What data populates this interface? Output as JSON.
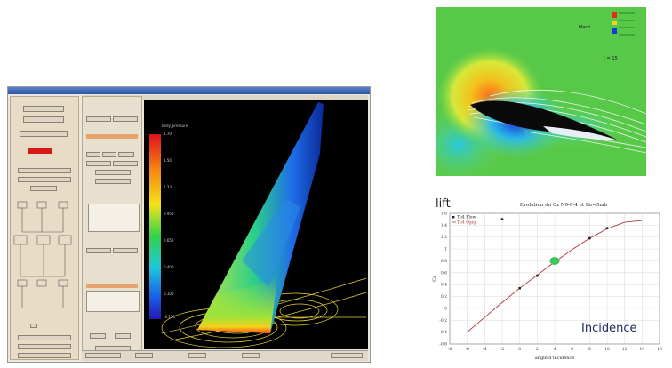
{
  "viewer": {
    "colorbar_title": "body_pressure",
    "colorbar_ticks": [
      "1.70",
      "1.50",
      "1.33",
      "0.950",
      "0.650",
      "0.400",
      "0.100",
      "-0.150"
    ]
  },
  "cfd": {
    "mach_label": "Mach",
    "time_label": "t = 15"
  },
  "annotations": {
    "lift": "lift",
    "incidence": "Incidence"
  },
  "chart_data": {
    "type": "scatter",
    "title": "Evolution du Cz  N0-0-4 et Re=5mb",
    "xlabel": "angle d'incidence",
    "ylabel": "Cz",
    "xlim": [
      -8,
      16
    ],
    "ylim": [
      -0.6,
      1.6
    ],
    "xticks": [
      "-8",
      "-6",
      "-4",
      "-2",
      "0",
      "2",
      "4",
      "6",
      "8",
      "10",
      "12",
      "14",
      "16"
    ],
    "yticks": [
      "1.6",
      "1.4",
      "1.2",
      "1",
      "0.8",
      "0.6",
      "0.4",
      "0.2",
      "0",
      "-0.2",
      "-0.4",
      "-0.6"
    ],
    "series": [
      {
        "name": "Tu4 Flow",
        "x": [
          -2,
          0,
          2,
          8,
          10
        ],
        "y": [
          1.5,
          0.34,
          0.55,
          1.18,
          1.35
        ]
      },
      {
        "name": "Tu4 Ogig",
        "x": [
          -6,
          -4,
          -2,
          0,
          2,
          4,
          6,
          8,
          10,
          12,
          14
        ],
        "y": [
          -0.4,
          -0.15,
          0.1,
          0.34,
          0.56,
          0.78,
          0.99,
          1.18,
          1.34,
          1.45,
          1.48
        ]
      }
    ],
    "highlight_point": {
      "x": 4,
      "y": 0.8,
      "color": "#3cc65a"
    },
    "colors": {
      "points": "#222222",
      "line": "#b03a3a"
    }
  }
}
